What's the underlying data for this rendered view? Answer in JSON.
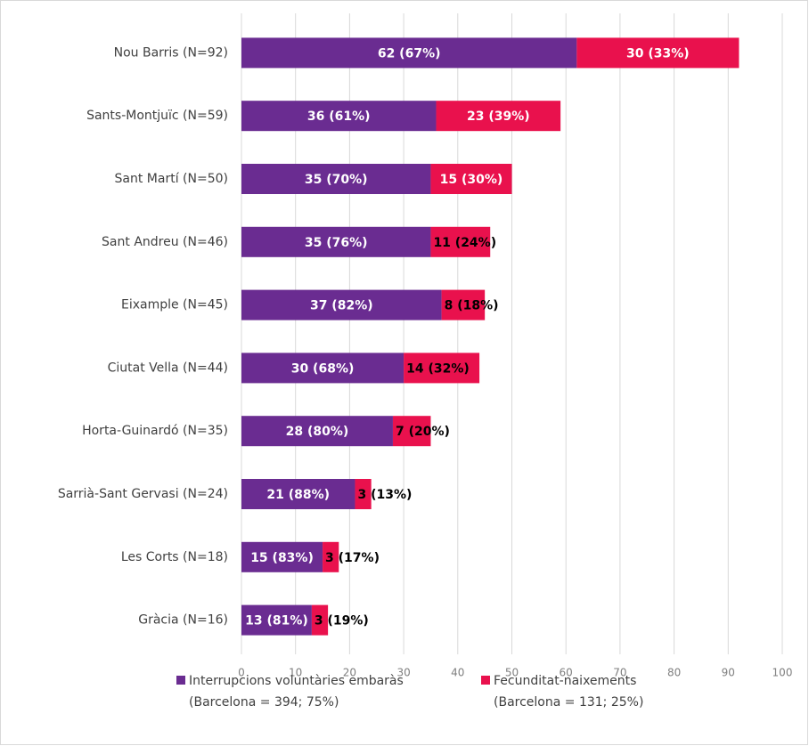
{
  "chart_data": {
    "type": "bar",
    "orientation": "horizontal",
    "stacked": true,
    "categories": [
      "Nou Barris (N=92)",
      "Sants-Montjuïc (N=59)",
      "Sant Martí (N=50)",
      "Sant Andreu (N=46)",
      "Eixample (N=45)",
      "Ciutat Vella (N=44)",
      "Horta-Guinardó (N=35)",
      "Sarrià-Sant Gervasi (N=24)",
      "Les Corts (N=18)",
      "Gràcia (N=16)"
    ],
    "series": [
      {
        "name": "Interrupcions voluntàries embaràs",
        "legend_detail": "(Barcelona = 394; 75%)",
        "color": "#6a2c91",
        "values": [
          62,
          36,
          35,
          35,
          37,
          30,
          28,
          21,
          15,
          13
        ],
        "value_labels": [
          "62 (67%)",
          "36 (61%)",
          "35 (70%)",
          "35 (76%)",
          "37 (82%)",
          "30 (68%)",
          "28 (80%)",
          "21 (88%)",
          "15 (83%)",
          "13 (81%)"
        ]
      },
      {
        "name": "Fecunditat-naixements",
        "legend_detail": "(Barcelona = 131; 25%)",
        "color": "#e9114d",
        "values": [
          30,
          23,
          15,
          11,
          8,
          14,
          7,
          3,
          3,
          3
        ],
        "value_labels": [
          "30 (33%)",
          "23 (39%)",
          "15 (30%)",
          "11 (24%)",
          "8 (18%)",
          "14 (32%)",
          "7 (20%)",
          "3 (13%)",
          "3 (17%)",
          "3 (19%)"
        ]
      }
    ],
    "xlim": [
      0,
      100
    ],
    "xticks": [
      0,
      10,
      20,
      30,
      40,
      50,
      60,
      70,
      80,
      90,
      100
    ],
    "grid": true,
    "legend": "bottom"
  }
}
